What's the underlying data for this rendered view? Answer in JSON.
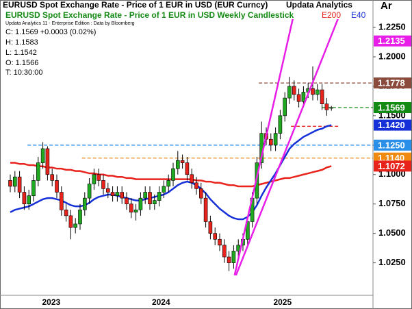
{
  "title": "EURUSD Spot Exchange Rate - Price of 1 EUR in USD (EUR Curncy)",
  "brand": "Updata Analytics",
  "corner": "Ar",
  "info": {
    "source": "Updata Analytics 11 - Enterprise Edition : Data by Bloomberg",
    "lines": [
      "C: 1.1569 +0.0003 (0.02%)",
      "H: 1.1583",
      "L: 1.1542",
      "O: 1.1566",
      "T: 10:30:00"
    ]
  },
  "chart_data": {
    "type": "candlestick",
    "subtitle": "EURUSD Spot Exchange Rate - Price of 1 EUR in USD Weekly Candlestick",
    "up_color": "#1faa1f",
    "down_color": "#e8231c",
    "categories": [
      null,
      null,
      null,
      null,
      null,
      null,
      null,
      null,
      null,
      null,
      null,
      null,
      null,
      null,
      null,
      null,
      null,
      null,
      null,
      null,
      null,
      null,
      null,
      null,
      null,
      null,
      null,
      null,
      null,
      null,
      null,
      null,
      null,
      null,
      null,
      null,
      null,
      null,
      null,
      null,
      null,
      null,
      null,
      null,
      null,
      null,
      null,
      null,
      null,
      null,
      null,
      null,
      null,
      null,
      null,
      null,
      null,
      null,
      null,
      null,
      null,
      null,
      null,
      null,
      null,
      null,
      null,
      null,
      null,
      null
    ],
    "open": [
      1.095,
      1.09,
      1.098,
      1.085,
      1.075,
      1.082,
      1.095,
      1.11,
      1.122,
      1.1,
      1.095,
      1.085,
      1.07,
      1.065,
      1.055,
      1.058,
      1.07,
      1.08,
      1.092,
      1.1,
      1.095,
      1.088,
      1.085,
      1.082,
      1.085,
      1.08,
      1.075,
      1.068,
      1.07,
      1.08,
      1.085,
      1.075,
      1.078,
      1.085,
      1.09,
      1.095,
      1.105,
      1.112,
      1.11,
      1.1,
      1.093,
      1.088,
      1.08,
      1.06,
      1.05,
      1.045,
      1.04,
      1.03,
      1.025,
      1.035,
      1.04,
      1.045,
      1.06,
      1.08,
      1.11,
      1.135,
      1.13,
      1.125,
      1.135,
      1.15,
      1.165,
      1.175,
      1.168,
      1.162,
      1.17,
      1.173,
      1.168,
      1.172,
      1.16,
      1.1566
    ],
    "high": [
      1.1,
      1.103,
      1.103,
      1.09,
      1.087,
      1.1,
      1.115,
      1.1275,
      1.124,
      1.105,
      1.1,
      1.09,
      1.075,
      1.07,
      1.063,
      1.075,
      1.085,
      1.097,
      1.105,
      1.105,
      1.1,
      1.093,
      1.09,
      1.09,
      1.09,
      1.085,
      1.08,
      1.075,
      1.085,
      1.09,
      1.09,
      1.083,
      1.09,
      1.095,
      1.1,
      1.11,
      1.12,
      1.117,
      1.115,
      1.105,
      1.098,
      1.093,
      1.085,
      1.065,
      1.055,
      1.05,
      1.045,
      1.035,
      1.04,
      1.045,
      1.05,
      1.065,
      1.085,
      1.115,
      1.145,
      1.14,
      1.135,
      1.14,
      1.155,
      1.17,
      1.183,
      1.18,
      1.173,
      1.175,
      1.178,
      1.1918,
      1.177,
      1.177,
      1.165,
      1.1583
    ],
    "low": [
      1.085,
      1.085,
      1.08,
      1.07,
      1.07,
      1.077,
      1.09,
      1.105,
      1.095,
      1.09,
      1.08,
      1.065,
      1.06,
      1.045,
      1.05,
      1.053,
      1.065,
      1.075,
      1.087,
      1.09,
      1.083,
      1.08,
      1.077,
      1.077,
      1.075,
      1.07,
      1.063,
      1.061,
      1.065,
      1.075,
      1.07,
      1.07,
      1.073,
      1.08,
      1.085,
      1.09,
      1.1,
      1.105,
      1.095,
      1.088,
      1.083,
      1.075,
      1.055,
      1.045,
      1.04,
      1.035,
      1.025,
      1.018,
      1.02,
      1.03,
      1.035,
      1.04,
      1.055,
      1.075,
      1.105,
      1.125,
      1.12,
      1.12,
      1.13,
      1.145,
      1.16,
      1.163,
      1.157,
      1.157,
      1.165,
      1.163,
      1.163,
      1.155,
      1.15,
      1.1542
    ],
    "close": [
      1.09,
      1.098,
      1.085,
      1.075,
      1.082,
      1.095,
      1.11,
      1.122,
      1.1,
      1.095,
      1.085,
      1.07,
      1.065,
      1.055,
      1.058,
      1.07,
      1.08,
      1.092,
      1.1,
      1.095,
      1.088,
      1.085,
      1.082,
      1.085,
      1.08,
      1.075,
      1.068,
      1.07,
      1.08,
      1.085,
      1.075,
      1.078,
      1.085,
      1.09,
      1.095,
      1.105,
      1.112,
      1.11,
      1.1,
      1.093,
      1.088,
      1.08,
      1.06,
      1.05,
      1.045,
      1.04,
      1.03,
      1.025,
      1.035,
      1.04,
      1.045,
      1.06,
      1.08,
      1.11,
      1.135,
      1.13,
      1.125,
      1.135,
      1.15,
      1.165,
      1.175,
      1.168,
      1.162,
      1.17,
      1.173,
      1.168,
      1.172,
      1.16,
      1.155,
      1.1569
    ],
    "overlays": [
      {
        "name": "E200",
        "color": "#e8231c",
        "values": [
          1.11,
          1.11,
          1.109,
          1.109,
          1.108,
          1.108,
          1.107,
          1.107,
          1.106,
          1.106,
          1.105,
          1.105,
          1.104,
          1.104,
          1.103,
          1.103,
          1.102,
          1.101,
          1.101,
          1.1,
          1.1,
          1.099,
          1.099,
          1.098,
          1.098,
          1.097,
          1.097,
          1.096,
          1.096,
          1.096,
          1.096,
          1.096,
          1.096,
          1.096,
          1.096,
          1.096,
          1.096,
          1.096,
          1.096,
          1.096,
          1.095,
          1.095,
          1.094,
          1.094,
          1.093,
          1.093,
          1.092,
          1.091,
          1.091,
          1.09,
          1.09,
          1.09,
          1.09,
          1.091,
          1.092,
          1.093,
          1.094,
          1.095,
          1.096,
          1.097,
          1.097,
          1.098,
          1.099,
          1.1,
          1.101,
          1.102,
          1.103,
          1.104,
          1.106,
          1.1072
        ]
      },
      {
        "name": "E40",
        "color": "#1530d8",
        "values": [
          1.068,
          1.07,
          1.071,
          1.072,
          1.073,
          1.075,
          1.077,
          1.079,
          1.08,
          1.08,
          1.079,
          1.078,
          1.076,
          1.074,
          1.073,
          1.073,
          1.074,
          1.076,
          1.079,
          1.081,
          1.082,
          1.083,
          1.083,
          1.082,
          1.081,
          1.08,
          1.079,
          1.078,
          1.078,
          1.079,
          1.08,
          1.081,
          1.082,
          1.083,
          1.085,
          1.088,
          1.091,
          1.093,
          1.094,
          1.093,
          1.091,
          1.088,
          1.084,
          1.079,
          1.075,
          1.071,
          1.068,
          1.065,
          1.063,
          1.062,
          1.062,
          1.064,
          1.068,
          1.074,
          1.082,
          1.089,
          1.095,
          1.101,
          1.108,
          1.115,
          1.122,
          1.126,
          1.129,
          1.132,
          1.134,
          1.136,
          1.138,
          1.139,
          1.141,
          1.142
        ]
      }
    ],
    "trendlines": [
      {
        "color": "#e81ee8",
        "points": [
          [
            48.2,
            1.0144
          ],
          [
            60.7,
            1.2321
          ]
        ]
      },
      {
        "color": "#e81ee8",
        "points": [
          [
            48.5,
            1.0144
          ],
          [
            70.4,
            1.2321
          ]
        ]
      }
    ],
    "levels": [
      {
        "value": 1.125,
        "color": "#2a8fe8",
        "x_start": 3.7
      },
      {
        "value": 1.114,
        "color": "#f08a10",
        "x_start": 15.4
      },
      {
        "value": 1.1778,
        "color": "#8a4a3c",
        "x_start": 53.4
      },
      {
        "value": 1.1569,
        "color": "#138a13",
        "x_start": 66.9
      },
      {
        "value": 1.141,
        "color": "#e8231c",
        "x_start": 60.3,
        "x_end": 70.6
      }
    ],
    "axis_labels": [
      {
        "value": 1.2135,
        "label": "1.2135",
        "color": "#e81ee8"
      },
      {
        "value": 1.1778,
        "label": "1.1778",
        "color": "#8a4a3c"
      },
      {
        "value": 1.1569,
        "label": "1.1569",
        "color": "#138a13"
      },
      {
        "value": 1.125,
        "label": "1.1250",
        "color": "#2a8fe8"
      },
      {
        "value": 1.114,
        "label": "1.1140",
        "color": "#f08a10"
      },
      {
        "value": 1.142,
        "label": "1.1420",
        "color": "#1530d8"
      },
      {
        "value": 1.1072,
        "label": "1.1072",
        "color": "#e8231c"
      }
    ],
    "ylim": [
      0.998,
      1.232
    ],
    "yticks": [
      {
        "value": 1.025,
        "label": "1.0250"
      },
      {
        "value": 1.05,
        "label": "1.0500"
      },
      {
        "value": 1.075,
        "label": "1.0750"
      },
      {
        "value": 1.1,
        "label": "1.1000"
      },
      {
        "value": 1.125,
        "label": "1.1250"
      },
      {
        "value": 1.15,
        "label": "1.1500"
      },
      {
        "value": 1.175,
        "label": "1.1750"
      },
      {
        "value": 1.2,
        "label": "1.2000"
      },
      {
        "value": 1.225,
        "label": "1.2250"
      }
    ],
    "xticks": [
      {
        "value": 8.8,
        "label": "2023"
      },
      {
        "value": 32.4,
        "label": "2024"
      },
      {
        "value": 58.5,
        "label": "2025"
      }
    ],
    "grid": false
  }
}
